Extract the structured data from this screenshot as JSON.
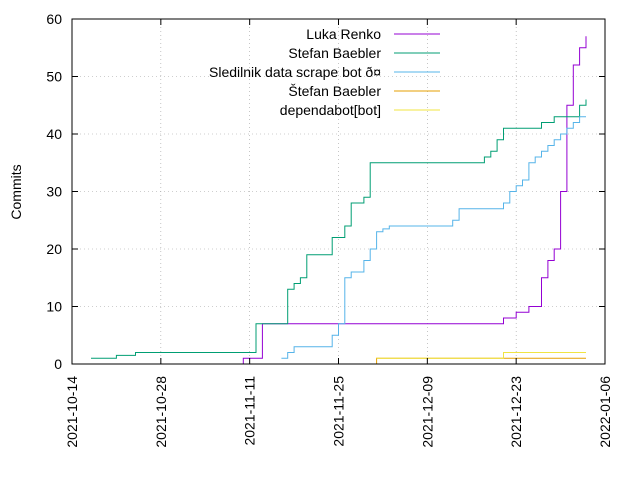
{
  "chart_data": {
    "type": "line",
    "title": "",
    "xlabel": "",
    "ylabel": "Commits",
    "x_axis_type": "date",
    "xlim": [
      "2021-10-14",
      "2022-01-06"
    ],
    "ylim": [
      0,
      60
    ],
    "x_ticks": [
      "2021-10-14",
      "2021-10-28",
      "2021-11-11",
      "2021-11-25",
      "2021-12-09",
      "2021-12-23",
      "2022-01-06"
    ],
    "y_ticks": [
      0,
      10,
      20,
      30,
      40,
      50,
      60
    ],
    "grid": true,
    "legend_position": "top-right",
    "series": [
      {
        "name": "Luka Renko",
        "color": "#9400d3",
        "x": [
          "2021-10-26",
          "2021-11-10",
          "2021-11-12",
          "2021-11-13",
          "2021-12-17",
          "2021-12-20",
          "2021-12-21",
          "2021-12-23",
          "2021-12-25",
          "2021-12-27",
          "2021-12-28",
          "2021-12-29",
          "2021-12-30",
          "2021-12-31",
          "2022-01-01",
          "2022-01-02",
          "2022-01-03"
        ],
        "y": [
          0,
          1,
          1,
          7,
          7,
          7,
          8,
          9,
          10,
          15,
          18,
          20,
          30,
          45,
          52,
          55,
          57
        ]
      },
      {
        "name": "Stefan Baebler",
        "color": "#009e73",
        "x": [
          "2021-10-17",
          "2021-10-21",
          "2021-10-24",
          "2021-11-11",
          "2021-11-12",
          "2021-11-15",
          "2021-11-17",
          "2021-11-18",
          "2021-11-19",
          "2021-11-20",
          "2021-11-24",
          "2021-11-25",
          "2021-11-26",
          "2021-11-27",
          "2021-11-29",
          "2021-11-30",
          "2021-12-14",
          "2021-12-18",
          "2021-12-19",
          "2021-12-20",
          "2021-12-21",
          "2021-12-25",
          "2021-12-27",
          "2021-12-29",
          "2022-01-01",
          "2022-01-02",
          "2022-01-03"
        ],
        "y": [
          1,
          1.5,
          2,
          2,
          7,
          7,
          13,
          14,
          15,
          19,
          22,
          22,
          24,
          28,
          29,
          35,
          35,
          36,
          37,
          39,
          41,
          41,
          42,
          43,
          43,
          45,
          46
        ]
      },
      {
        "name": "Sledilnik data scrape bot ð¤",
        "color": "#56b4e9",
        "x": [
          "2021-11-16",
          "2021-11-17",
          "2021-11-18",
          "2021-11-24",
          "2021-11-25",
          "2021-11-26",
          "2021-11-27",
          "2021-11-29",
          "2021-11-30",
          "2021-12-01",
          "2021-12-02",
          "2021-12-03",
          "2021-12-13",
          "2021-12-14",
          "2021-12-21",
          "2021-12-22",
          "2021-12-23",
          "2021-12-24",
          "2021-12-25",
          "2021-12-26",
          "2021-12-27",
          "2021-12-28",
          "2021-12-29",
          "2021-12-30",
          "2021-12-31",
          "2022-01-01",
          "2022-01-02",
          "2022-01-03"
        ],
        "y": [
          1,
          2,
          3,
          5,
          7,
          15,
          16,
          18,
          20,
          23,
          23.5,
          24,
          25,
          27,
          28,
          30,
          31,
          32,
          35,
          36,
          37,
          38,
          39,
          40,
          41,
          42,
          43,
          43
        ]
      },
      {
        "name": "Štefan Baebler",
        "color": "#e69f00",
        "x": [
          "2021-11-30",
          "2021-12-01",
          "2022-01-03"
        ],
        "y": [
          0,
          1,
          1
        ]
      },
      {
        "name": "dependabot[bot]",
        "color": "#f0e442",
        "x": [
          "2021-12-01",
          "2021-12-20",
          "2021-12-21",
          "2022-01-03"
        ],
        "y": [
          1,
          1,
          2,
          2
        ]
      }
    ]
  }
}
